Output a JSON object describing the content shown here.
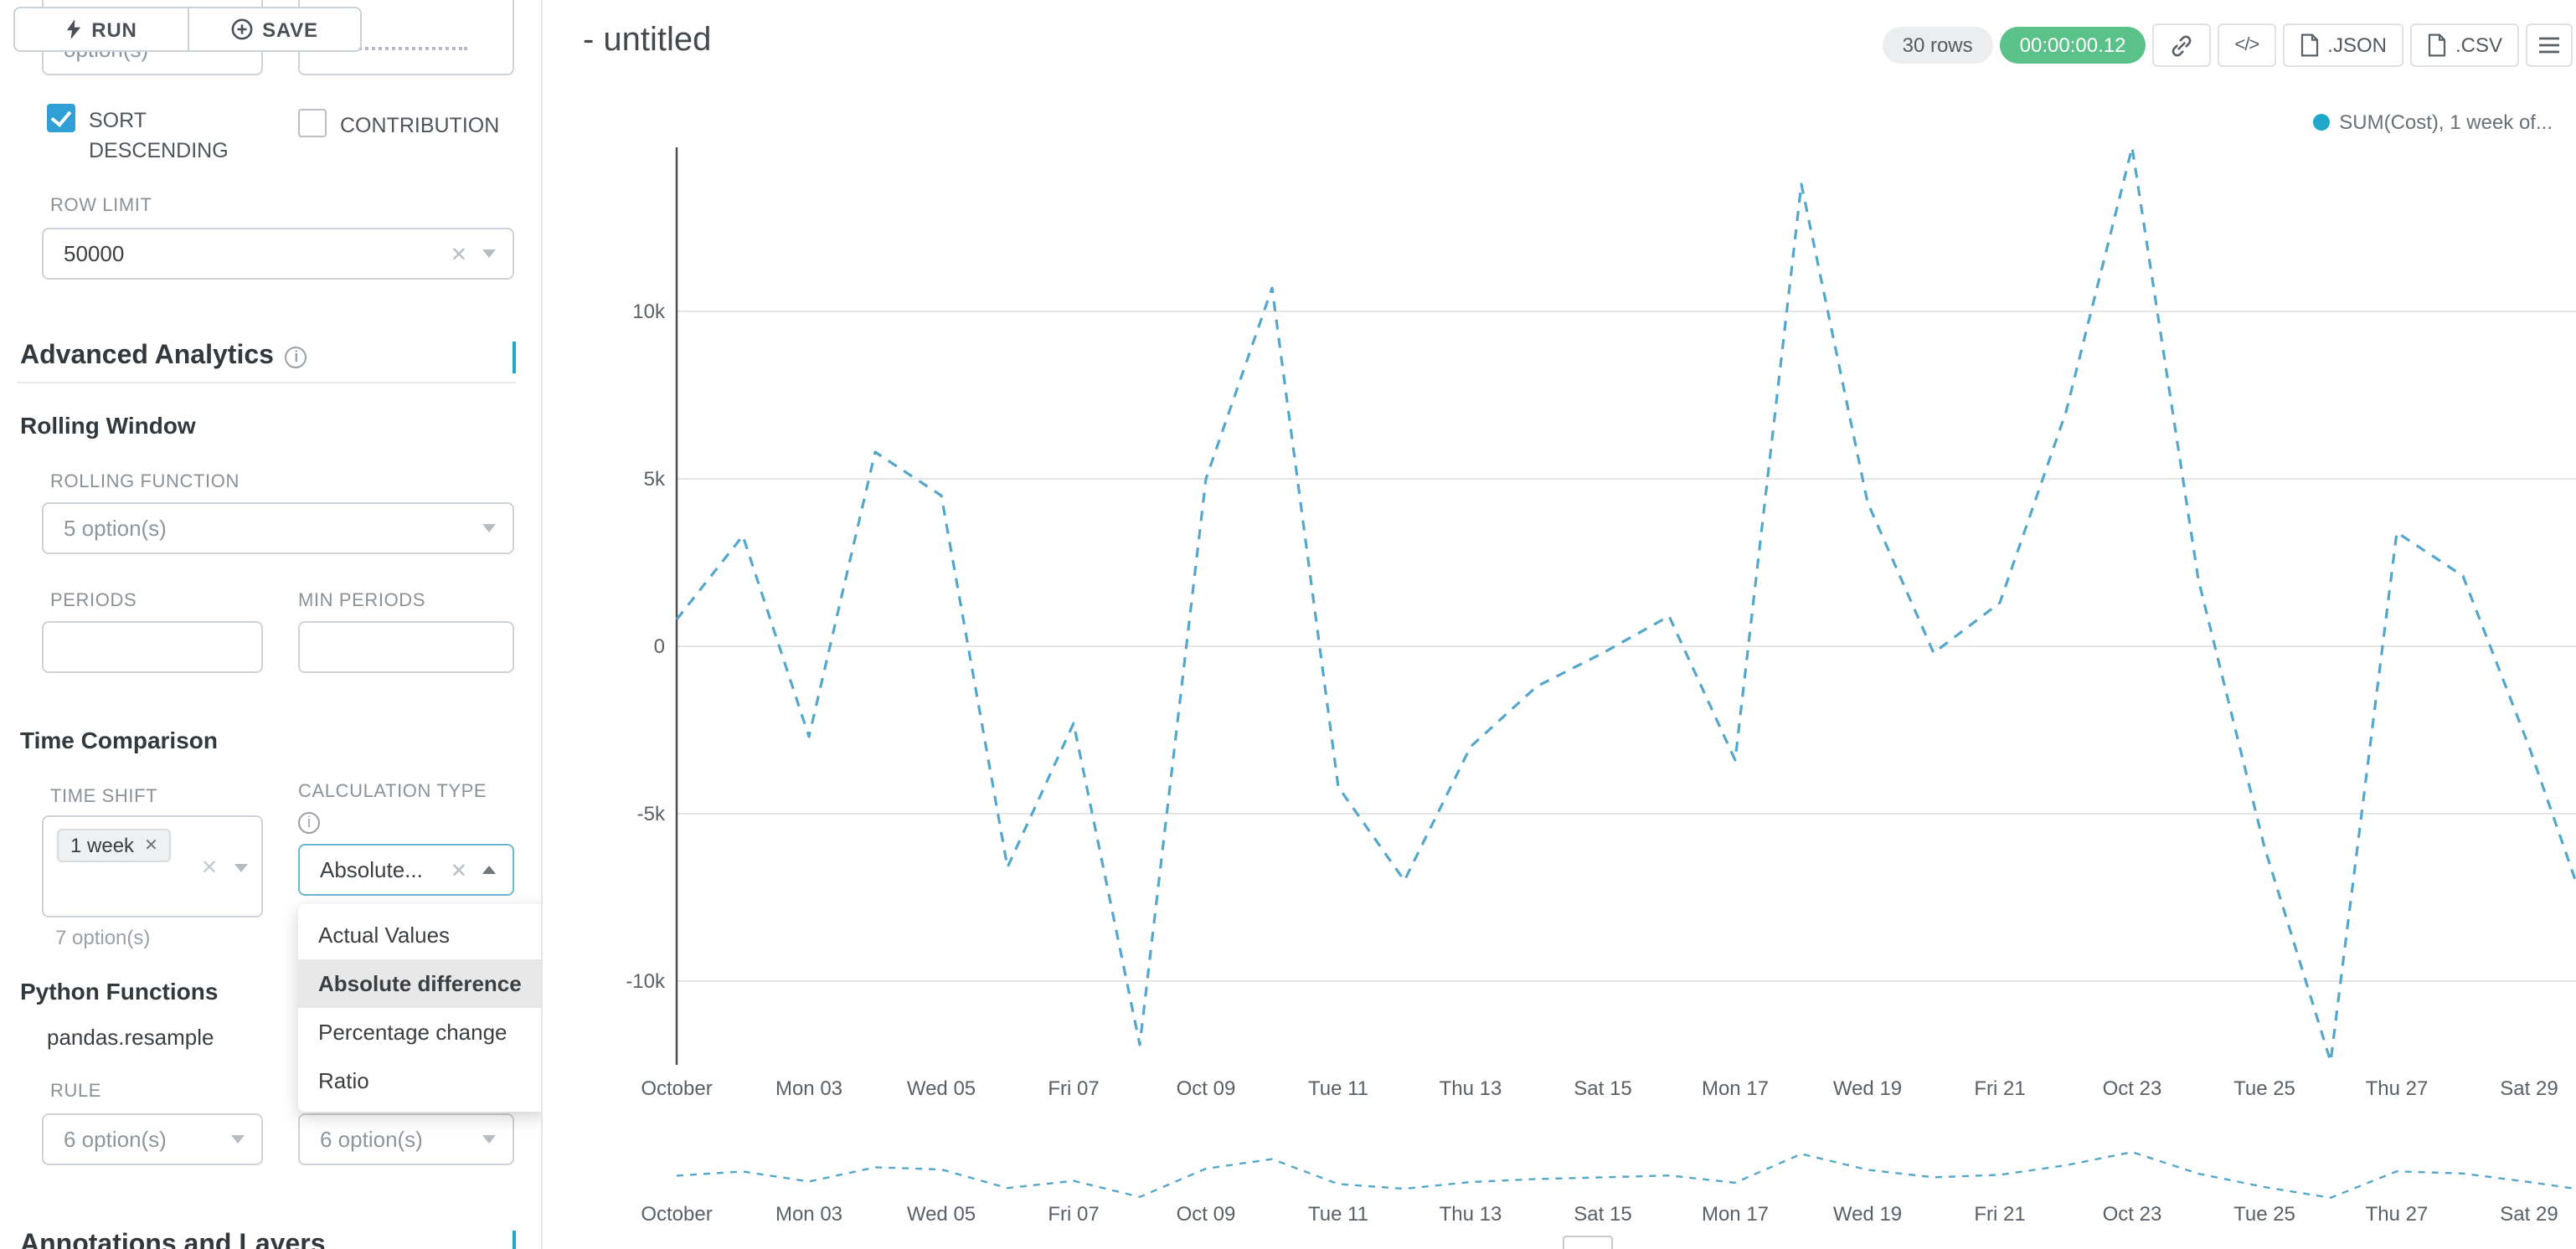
{
  "colors": {
    "primary": "#20a7c9",
    "success": "#5ac189",
    "checkbox_blue": "#2f9fd6",
    "line": "#54a7cc",
    "legend_dot": "#1fa8c9"
  },
  "toolbar": {
    "run_label": "RUN",
    "save_label": "SAVE"
  },
  "sidebar": {
    "truncated_left_text": "option(s)",
    "sort_descending": {
      "label": "SORT DESCENDING",
      "checked": true
    },
    "contribution": {
      "label": "CONTRIBUTION",
      "checked": false
    },
    "row_limit": {
      "label": "ROW LIMIT",
      "value": "50000"
    },
    "advanced_analytics_title": "Advanced Analytics",
    "rolling_window": {
      "title": "Rolling Window",
      "rolling_function_label": "ROLLING FUNCTION",
      "rolling_function_placeholder": "5 option(s)",
      "periods_label": "PERIODS",
      "min_periods_label": "MIN PERIODS"
    },
    "time_comparison": {
      "title": "Time Comparison",
      "time_shift_label": "TIME SHIFT",
      "time_shift_tag": "1 week",
      "time_shift_hint": "7 option(s)",
      "calculation_type_label": "CALCULATION TYPE",
      "calculation_type_value": "Absolute...",
      "dropdown_options": [
        "Actual Values",
        "Absolute difference",
        "Percentage change",
        "Ratio"
      ],
      "selected_option": "Absolute difference"
    },
    "python_functions": {
      "title": "Python Functions",
      "subtitle": "pandas.resample",
      "rule_label": "RULE",
      "rule_placeholder": "6 option(s)",
      "second_rule_placeholder": "6 option(s)"
    },
    "annotations_title": "Annotations and Layers"
  },
  "header": {
    "title": "- untitled",
    "rows_badge": "30 rows",
    "timer": "00:00:00.12",
    "code_icon_text": "</>",
    "json_label": ".JSON",
    "csv_label": ".CSV"
  },
  "chart_data": {
    "type": "line",
    "title": "",
    "legend": [
      {
        "label": "SUM(Cost), 1 week of...",
        "color": "#1fa8c9"
      }
    ],
    "x_ticks": [
      "October",
      "Mon 03",
      "Wed 05",
      "Fri 07",
      "Oct 09",
      "Tue 11",
      "Thu 13",
      "Sat 15",
      "Mon 17",
      "Wed 19",
      "Fri 21",
      "Oct 23",
      "Tue 25",
      "Thu 27",
      "Sat 29"
    ],
    "y_ticks": [
      {
        "label": "10k",
        "value": 10000
      },
      {
        "label": "5k",
        "value": 5000
      },
      {
        "label": "0",
        "value": 0
      },
      {
        "label": "-5k",
        "value": -5000
      },
      {
        "label": "-10k",
        "value": -10000
      }
    ],
    "ylim": [
      -13000,
      15000
    ],
    "grid": true,
    "line_style": "dashed",
    "series": [
      {
        "name": "SUM(Cost), 1 week offset",
        "color": "#54a7cc",
        "values": [
          800,
          3300,
          -2700,
          5800,
          4500,
          -6600,
          -2300,
          -11900,
          5000,
          10700,
          -4200,
          -7000,
          -3000,
          -1200,
          -200,
          900,
          -3400,
          13800,
          4300,
          -200,
          1300,
          7000,
          14900,
          2000,
          -6000,
          -12400,
          3400,
          2100,
          -3000,
          -8700
        ]
      }
    ],
    "mini_chart": {
      "present": true,
      "x_ticks_repeated": true
    }
  }
}
